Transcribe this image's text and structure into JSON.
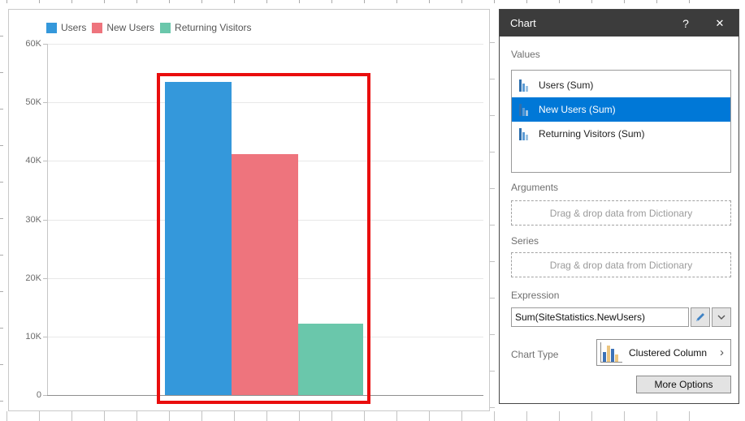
{
  "chart_data": {
    "type": "bar",
    "title": "",
    "categories": [
      "Users",
      "New Users",
      "Returning Visitors"
    ],
    "values": [
      53500,
      41100,
      12200
    ],
    "colors": [
      "#3498db",
      "#ee747d",
      "#6ac7ab"
    ],
    "ylim": [
      0,
      60000
    ],
    "ytick_step": 10000,
    "ytick_labels": [
      "0",
      "10K",
      "20K",
      "30K",
      "40K",
      "50K",
      "60K"
    ],
    "legend": [
      "Users",
      "New Users",
      "Returning Visitors"
    ],
    "legend_position": "top-left",
    "grid": true
  },
  "panel": {
    "title": "Chart",
    "help": "?",
    "close": "✕",
    "values": {
      "label": "Values",
      "selected_color": "#0078d7",
      "icon_colors": [
        "#2f6fad",
        "#5b9bd5",
        "#9cc3e3"
      ],
      "items": [
        {
          "label": "Users (Sum)",
          "selected": false
        },
        {
          "label": "New Users (Sum)",
          "selected": true
        },
        {
          "label": "Returning Visitors (Sum)",
          "selected": false
        }
      ]
    },
    "arguments": {
      "label": "Arguments",
      "placeholder": "Drag & drop data from Dictionary"
    },
    "series": {
      "label": "Series",
      "placeholder": "Drag & drop data from Dictionary"
    },
    "expression": {
      "label": "Expression",
      "value": "Sum(SiteStatistics.NewUsers)"
    },
    "chart_type": {
      "label": "Chart Type",
      "value": "Clustered Column",
      "chevron": "›",
      "icon_bar_heights": [
        12,
        20,
        16,
        9
      ],
      "icon_bar_colors": [
        "#3c72b8",
        "#ecc57f",
        "#3c72b8",
        "#ecc57f"
      ]
    },
    "more_options": "More Options"
  },
  "annotations": {
    "color": "#e90d0d"
  }
}
